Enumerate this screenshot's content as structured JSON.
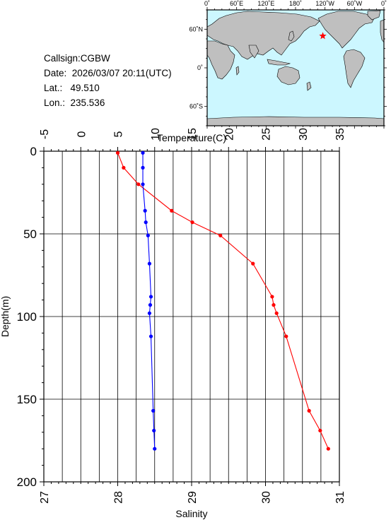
{
  "info": {
    "callsign": "Callsign:CGBW",
    "date": "Date:  2026/03/07 20:11(UTC)",
    "lat": "Lat.:   49.510",
    "lon": "Lon.:  235.536"
  },
  "map": {
    "lon_labels": [
      "0˚",
      "60˚E",
      "120˚E",
      "180˚",
      "120˚W",
      "60˚W",
      "0˚"
    ],
    "lat_labels": [
      "60˚N",
      "0˚",
      "60˚S"
    ],
    "ocean_color": "#ccf7ff",
    "land_color": "#bfbfbf",
    "station": {
      "lon": 235.536,
      "lat": 49.51,
      "marker": "star-icon",
      "color": "#ff0000"
    }
  },
  "chart_data": {
    "type": "line",
    "ylabel": "Depth(m)",
    "ylim": [
      200,
      0
    ],
    "yticks": [
      0,
      50,
      100,
      150,
      200
    ],
    "top_axis": {
      "label": "Temperature(C)",
      "lim": [
        -5,
        35
      ],
      "ticks": [
        -5,
        0,
        5,
        10,
        15,
        20,
        25,
        30,
        35
      ]
    },
    "bottom_axis": {
      "label": "Salinity",
      "lim": [
        27,
        31
      ],
      "ticks": [
        27,
        28,
        29,
        30,
        31
      ]
    },
    "grid": true,
    "series": [
      {
        "axis": "top",
        "color": "#ff0000",
        "points": [
          {
            "x": 5.0,
            "depth": 1
          },
          {
            "x": 5.8,
            "depth": 10
          },
          {
            "x": 7.8,
            "depth": 20
          },
          {
            "x": 12.3,
            "depth": 36
          },
          {
            "x": 15.1,
            "depth": 43
          },
          {
            "x": 18.9,
            "depth": 51
          },
          {
            "x": 23.3,
            "depth": 68
          },
          {
            "x": 25.9,
            "depth": 88
          },
          {
            "x": 26.1,
            "depth": 93
          },
          {
            "x": 26.5,
            "depth": 98
          },
          {
            "x": 27.8,
            "depth": 112
          },
          {
            "x": 30.9,
            "depth": 157
          },
          {
            "x": 32.4,
            "depth": 169
          },
          {
            "x": 33.5,
            "depth": 180
          }
        ]
      },
      {
        "axis": "bottom",
        "color": "#0000ff",
        "points": [
          {
            "x": 28.34,
            "depth": 1
          },
          {
            "x": 28.34,
            "depth": 10
          },
          {
            "x": 28.34,
            "depth": 20
          },
          {
            "x": 28.37,
            "depth": 36
          },
          {
            "x": 28.38,
            "depth": 43
          },
          {
            "x": 28.41,
            "depth": 51
          },
          {
            "x": 28.43,
            "depth": 68
          },
          {
            "x": 28.45,
            "depth": 88
          },
          {
            "x": 28.44,
            "depth": 93
          },
          {
            "x": 28.43,
            "depth": 98
          },
          {
            "x": 28.45,
            "depth": 112
          },
          {
            "x": 28.48,
            "depth": 157
          },
          {
            "x": 28.49,
            "depth": 169
          },
          {
            "x": 28.5,
            "depth": 180
          }
        ]
      }
    ]
  }
}
